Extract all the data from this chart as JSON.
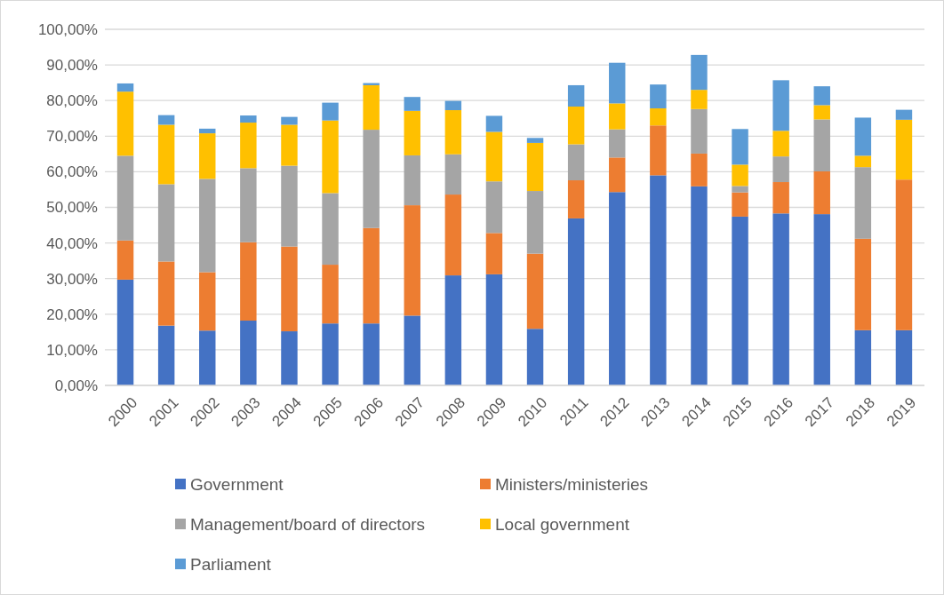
{
  "chart_data": {
    "type": "bar",
    "stacked": true,
    "categories": [
      "2000",
      "2001",
      "2002",
      "2003",
      "2004",
      "2005",
      "2006",
      "2007",
      "2008",
      "2009",
      "2010",
      "2011",
      "2012",
      "2013",
      "2014",
      "2015",
      "2016",
      "2017",
      "2018",
      "2019"
    ],
    "series": [
      {
        "name": "Government",
        "color": "#4472c4",
        "values": [
          29.7,
          16.8,
          15.4,
          18.2,
          15.2,
          17.4,
          17.4,
          19.6,
          30.9,
          31.2,
          15.9,
          46.9,
          54.3,
          59.0,
          55.9,
          47.4,
          48.3,
          48.1,
          15.5,
          15.5
        ]
      },
      {
        "name": "Ministers/ministeries",
        "color": "#ed7d31",
        "values": [
          11.0,
          18.0,
          16.4,
          22.0,
          23.8,
          16.5,
          26.8,
          31.0,
          22.7,
          11.6,
          21.1,
          10.7,
          9.7,
          14.0,
          9.2,
          6.8,
          8.8,
          12.0,
          25.7,
          42.3
        ]
      },
      {
        "name": "Management/board of directors",
        "color": "#a5a5a5",
        "values": [
          23.8,
          21.7,
          26.2,
          20.8,
          22.7,
          20.1,
          27.6,
          14.0,
          11.3,
          14.5,
          17.6,
          10.1,
          7.9,
          0,
          12.5,
          1.8,
          7.2,
          14.6,
          20.1,
          0
        ]
      },
      {
        "name": "Local government",
        "color": "#ffc000",
        "values": [
          18.0,
          16.7,
          12.8,
          12.8,
          11.5,
          20.4,
          12.5,
          12.5,
          12.4,
          13.9,
          13.5,
          10.6,
          7.3,
          4.8,
          5.4,
          6.0,
          7.2,
          4.0,
          3.2,
          16.8
        ]
      },
      {
        "name": "Parliament",
        "color": "#5b9bd5",
        "values": [
          2.3,
          2.7,
          1.3,
          2.0,
          2.2,
          5.0,
          0.6,
          3.9,
          2.6,
          4.5,
          1.4,
          6.0,
          11.4,
          6.7,
          9.8,
          10.0,
          14.2,
          5.3,
          10.7,
          2.8
        ]
      }
    ],
    "ylim": [
      0,
      100
    ],
    "yticks": [
      {
        "value": 0,
        "label": "0,00%"
      },
      {
        "value": 10,
        "label": "10,00%"
      },
      {
        "value": 20,
        "label": "20,00%"
      },
      {
        "value": 30,
        "label": "30,00%"
      },
      {
        "value": 40,
        "label": "40,00%"
      },
      {
        "value": 50,
        "label": "50,00%"
      },
      {
        "value": 60,
        "label": "60,00%"
      },
      {
        "value": 70,
        "label": "70,00%"
      },
      {
        "value": 80,
        "label": "80,00%"
      },
      {
        "value": 90,
        "label": "90,00%"
      },
      {
        "value": 100,
        "label": "100,00%"
      }
    ],
    "grid": "y",
    "legend": "bottom"
  }
}
